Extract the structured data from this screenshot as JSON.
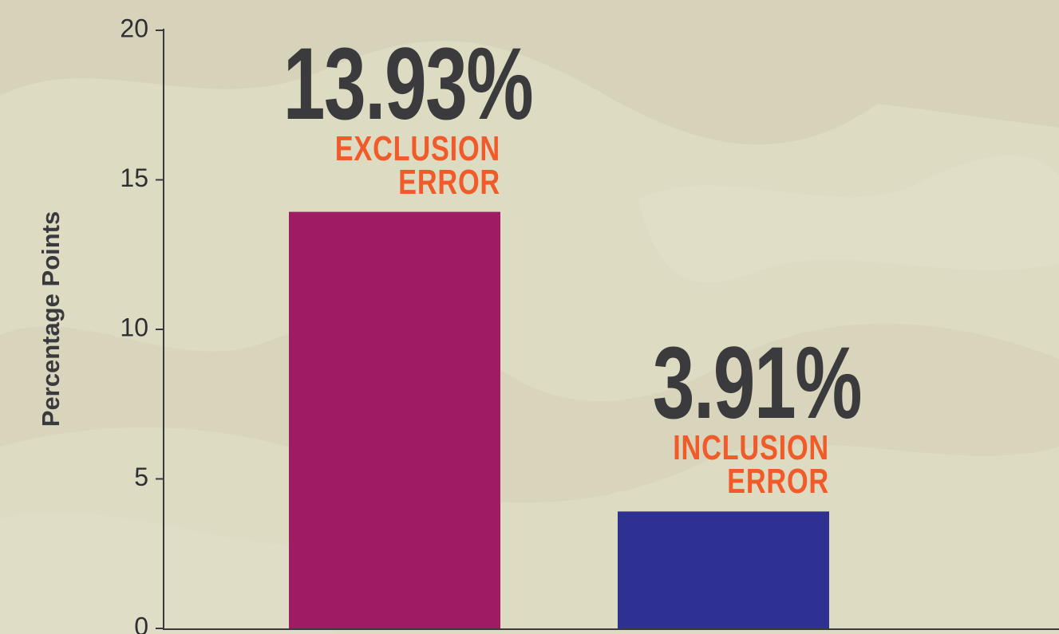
{
  "chart_data": {
    "type": "bar",
    "y_label": "Percentage Points",
    "categories": [
      "EXCLUSION ERROR",
      "INCLUSION ERROR"
    ],
    "values": [
      13.93,
      3.91
    ],
    "value_labels": [
      "13.93%",
      "3.91%"
    ],
    "colors": [
      "#a01c62",
      "#2e3192"
    ],
    "ylim": [
      0,
      20
    ],
    "yticks": [
      0,
      5,
      10,
      15,
      20
    ],
    "grid": false
  }
}
